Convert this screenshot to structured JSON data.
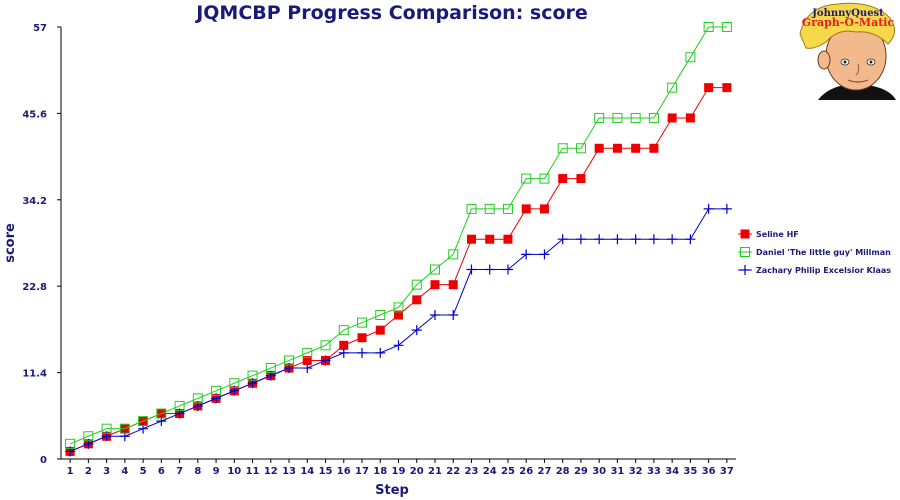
{
  "chart_data": {
    "type": "line",
    "title": "JQMCBP Progress Comparison: score",
    "xlabel": "Step",
    "ylabel": "score",
    "x": [
      1,
      2,
      3,
      4,
      5,
      6,
      7,
      8,
      9,
      10,
      11,
      12,
      13,
      14,
      15,
      16,
      17,
      18,
      19,
      20,
      21,
      22,
      23,
      24,
      25,
      26,
      27,
      28,
      29,
      30,
      31,
      32,
      33,
      34,
      35,
      36,
      37
    ],
    "xlim": [
      0.5,
      37.5
    ],
    "ylim": [
      0,
      57
    ],
    "yticks": [
      0,
      11.4,
      22.8,
      34.2,
      45.6,
      57
    ],
    "grid": false,
    "legend_position": "right",
    "series": [
      {
        "name": "Seline HF",
        "color": "#ee0000",
        "marker": "filled-square",
        "values": [
          1,
          2,
          3,
          4,
          5,
          6,
          6,
          7,
          8,
          9,
          10,
          11,
          12,
          13,
          13,
          15,
          16,
          17,
          19,
          21,
          23,
          23,
          29,
          29,
          29,
          33,
          33,
          37,
          37,
          41,
          41,
          41,
          41,
          45,
          45,
          49,
          49
        ]
      },
      {
        "name": "Daniel 'The little guy' Millman",
        "color": "#22cc22",
        "marker": "open-square",
        "values": [
          2,
          3,
          4,
          4,
          5,
          6,
          7,
          8,
          9,
          10,
          11,
          12,
          13,
          14,
          15,
          17,
          18,
          19,
          20,
          23,
          25,
          27,
          33,
          33,
          33,
          37,
          37,
          41,
          41,
          45,
          45,
          45,
          45,
          49,
          53,
          57,
          57
        ]
      },
      {
        "name": "Zachary Philip Excelsior Klaas",
        "color": "#0000cc",
        "marker": "plus",
        "values": [
          1,
          2,
          3,
          3,
          4,
          5,
          6,
          7,
          8,
          9,
          10,
          11,
          12,
          12,
          13,
          14,
          14,
          14,
          15,
          17,
          19,
          19,
          25,
          25,
          25,
          27,
          27,
          29,
          29,
          29,
          29,
          29,
          29,
          29,
          29,
          33,
          33
        ]
      }
    ]
  },
  "logo": {
    "line1": "JohnnyQuest",
    "line2": "Graph-O-Matic"
  }
}
